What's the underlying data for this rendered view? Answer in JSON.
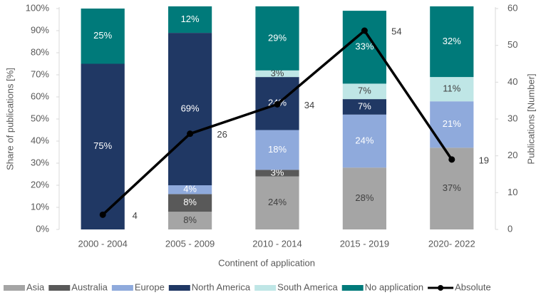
{
  "chart_data": {
    "type": "bar",
    "stacked": true,
    "xlabel": "Continent of application",
    "ylabel": "Share of publications [%]",
    "y2label": "Publications [Number]",
    "categories": [
      "2000 - 2004",
      "2005 - 2009",
      "2010 - 2014",
      "2015 - 2019",
      "2020- 2022"
    ],
    "series": [
      {
        "name": "Asia",
        "color": "#a5a5a5",
        "label_color": "#404040",
        "values": [
          0,
          8,
          24,
          28,
          37
        ],
        "value_labels": [
          null,
          "8%",
          "24%",
          "28%",
          "37%"
        ]
      },
      {
        "name": "Australia",
        "color": "#595959",
        "label_color": "#ffffff",
        "values": [
          0,
          8,
          3,
          0,
          0
        ],
        "value_labels": [
          null,
          "8%",
          "3%",
          null,
          null
        ]
      },
      {
        "name": "Europe",
        "color": "#8faadc",
        "label_color": "#ffffff",
        "values": [
          0,
          4,
          18,
          24,
          21
        ],
        "value_labels": [
          null,
          "4%",
          "18%",
          "24%",
          "21%"
        ]
      },
      {
        "name": "North America",
        "color": "#203864",
        "label_color": "#ffffff",
        "values": [
          75,
          69,
          24,
          7,
          0
        ],
        "value_labels": [
          "75%",
          "69%",
          "24%",
          "7%",
          null
        ]
      },
      {
        "name": "South America",
        "color": "#bfe6e6",
        "label_color": "#404040",
        "values": [
          0,
          0,
          3,
          7,
          11
        ],
        "value_labels": [
          null,
          null,
          "3%",
          "7%",
          "11%"
        ]
      },
      {
        "name": "No application",
        "color": "#007a7a",
        "label_color": "#ffffff",
        "values": [
          25,
          12,
          29,
          33,
          32
        ],
        "value_labels": [
          "25%",
          "12%",
          "29%",
          "33%",
          "32%"
        ]
      },
      {
        "name": "Absolute",
        "type": "line",
        "axis": "y2",
        "color": "#000000",
        "values": [
          4,
          26,
          34,
          54,
          19
        ]
      }
    ],
    "ylim": [
      0,
      100
    ],
    "yticks": [
      {
        "value": 0,
        "label": "0%"
      },
      {
        "value": 10,
        "label": "10%"
      },
      {
        "value": 20,
        "label": "20%"
      },
      {
        "value": 30,
        "label": "30%"
      },
      {
        "value": 40,
        "label": "40%"
      },
      {
        "value": 50,
        "label": "50%"
      },
      {
        "value": 60,
        "label": "60%"
      },
      {
        "value": 70,
        "label": "70%"
      },
      {
        "value": 80,
        "label": "80%"
      },
      {
        "value": 90,
        "label": "90%"
      },
      {
        "value": 100,
        "label": "100%"
      }
    ],
    "y2lim": [
      0,
      60
    ],
    "y2ticks": [
      0,
      10,
      20,
      30,
      40,
      50,
      60
    ],
    "legend": "bottom"
  }
}
